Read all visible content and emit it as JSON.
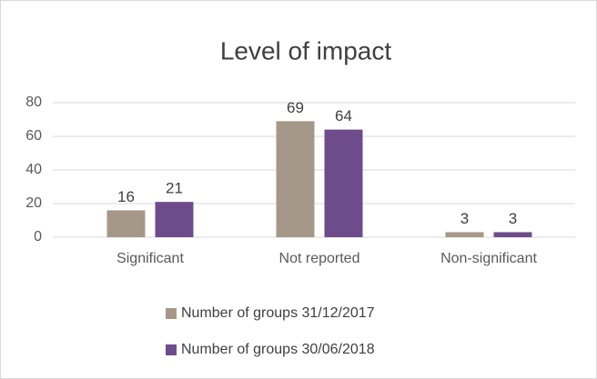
{
  "chart_data": {
    "type": "bar",
    "title": "Level of impact",
    "categories": [
      "Significant",
      "Not reported",
      "Non-significant"
    ],
    "series": [
      {
        "name": "Number of groups 31/12/2017",
        "color": "#a69888",
        "values": [
          16,
          69,
          3
        ]
      },
      {
        "name": "Number of groups 30/06/2018",
        "color": "#6e4c8c",
        "values": [
          21,
          64,
          3
        ]
      }
    ],
    "ylim": [
      0,
      80
    ],
    "yticks": [
      0,
      20,
      40,
      60,
      80
    ],
    "grid": true
  }
}
